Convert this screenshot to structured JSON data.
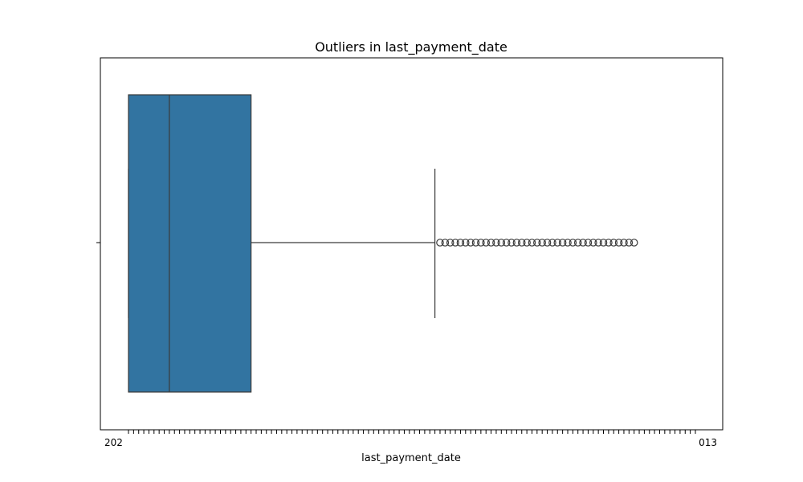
{
  "chart_data": {
    "type": "box",
    "orientation": "horizontal",
    "title": "Outliers in last_payment_date",
    "xlabel": "last_payment_date",
    "ylabel": "",
    "x_tick_count": 112,
    "x_tick_first_label_visible": "202",
    "x_tick_last_label_visible": "013",
    "x_range": [
      0,
      111
    ],
    "grid": false,
    "box": {
      "whisker_low": 0,
      "q1": 0,
      "median": 8,
      "q3": 24,
      "whisker_high": 60,
      "outliers": [
        61,
        62,
        63,
        64,
        65,
        66,
        67,
        68,
        69,
        70,
        71,
        72,
        73,
        74,
        75,
        76,
        77,
        78,
        79,
        80,
        81,
        82,
        83,
        84,
        85,
        86,
        87,
        88,
        89,
        90,
        91,
        92,
        93,
        94,
        95,
        96,
        97,
        98,
        99
      ]
    },
    "colors": {
      "box_fill": "#3274a1",
      "lines": "#3a3a3a"
    }
  }
}
